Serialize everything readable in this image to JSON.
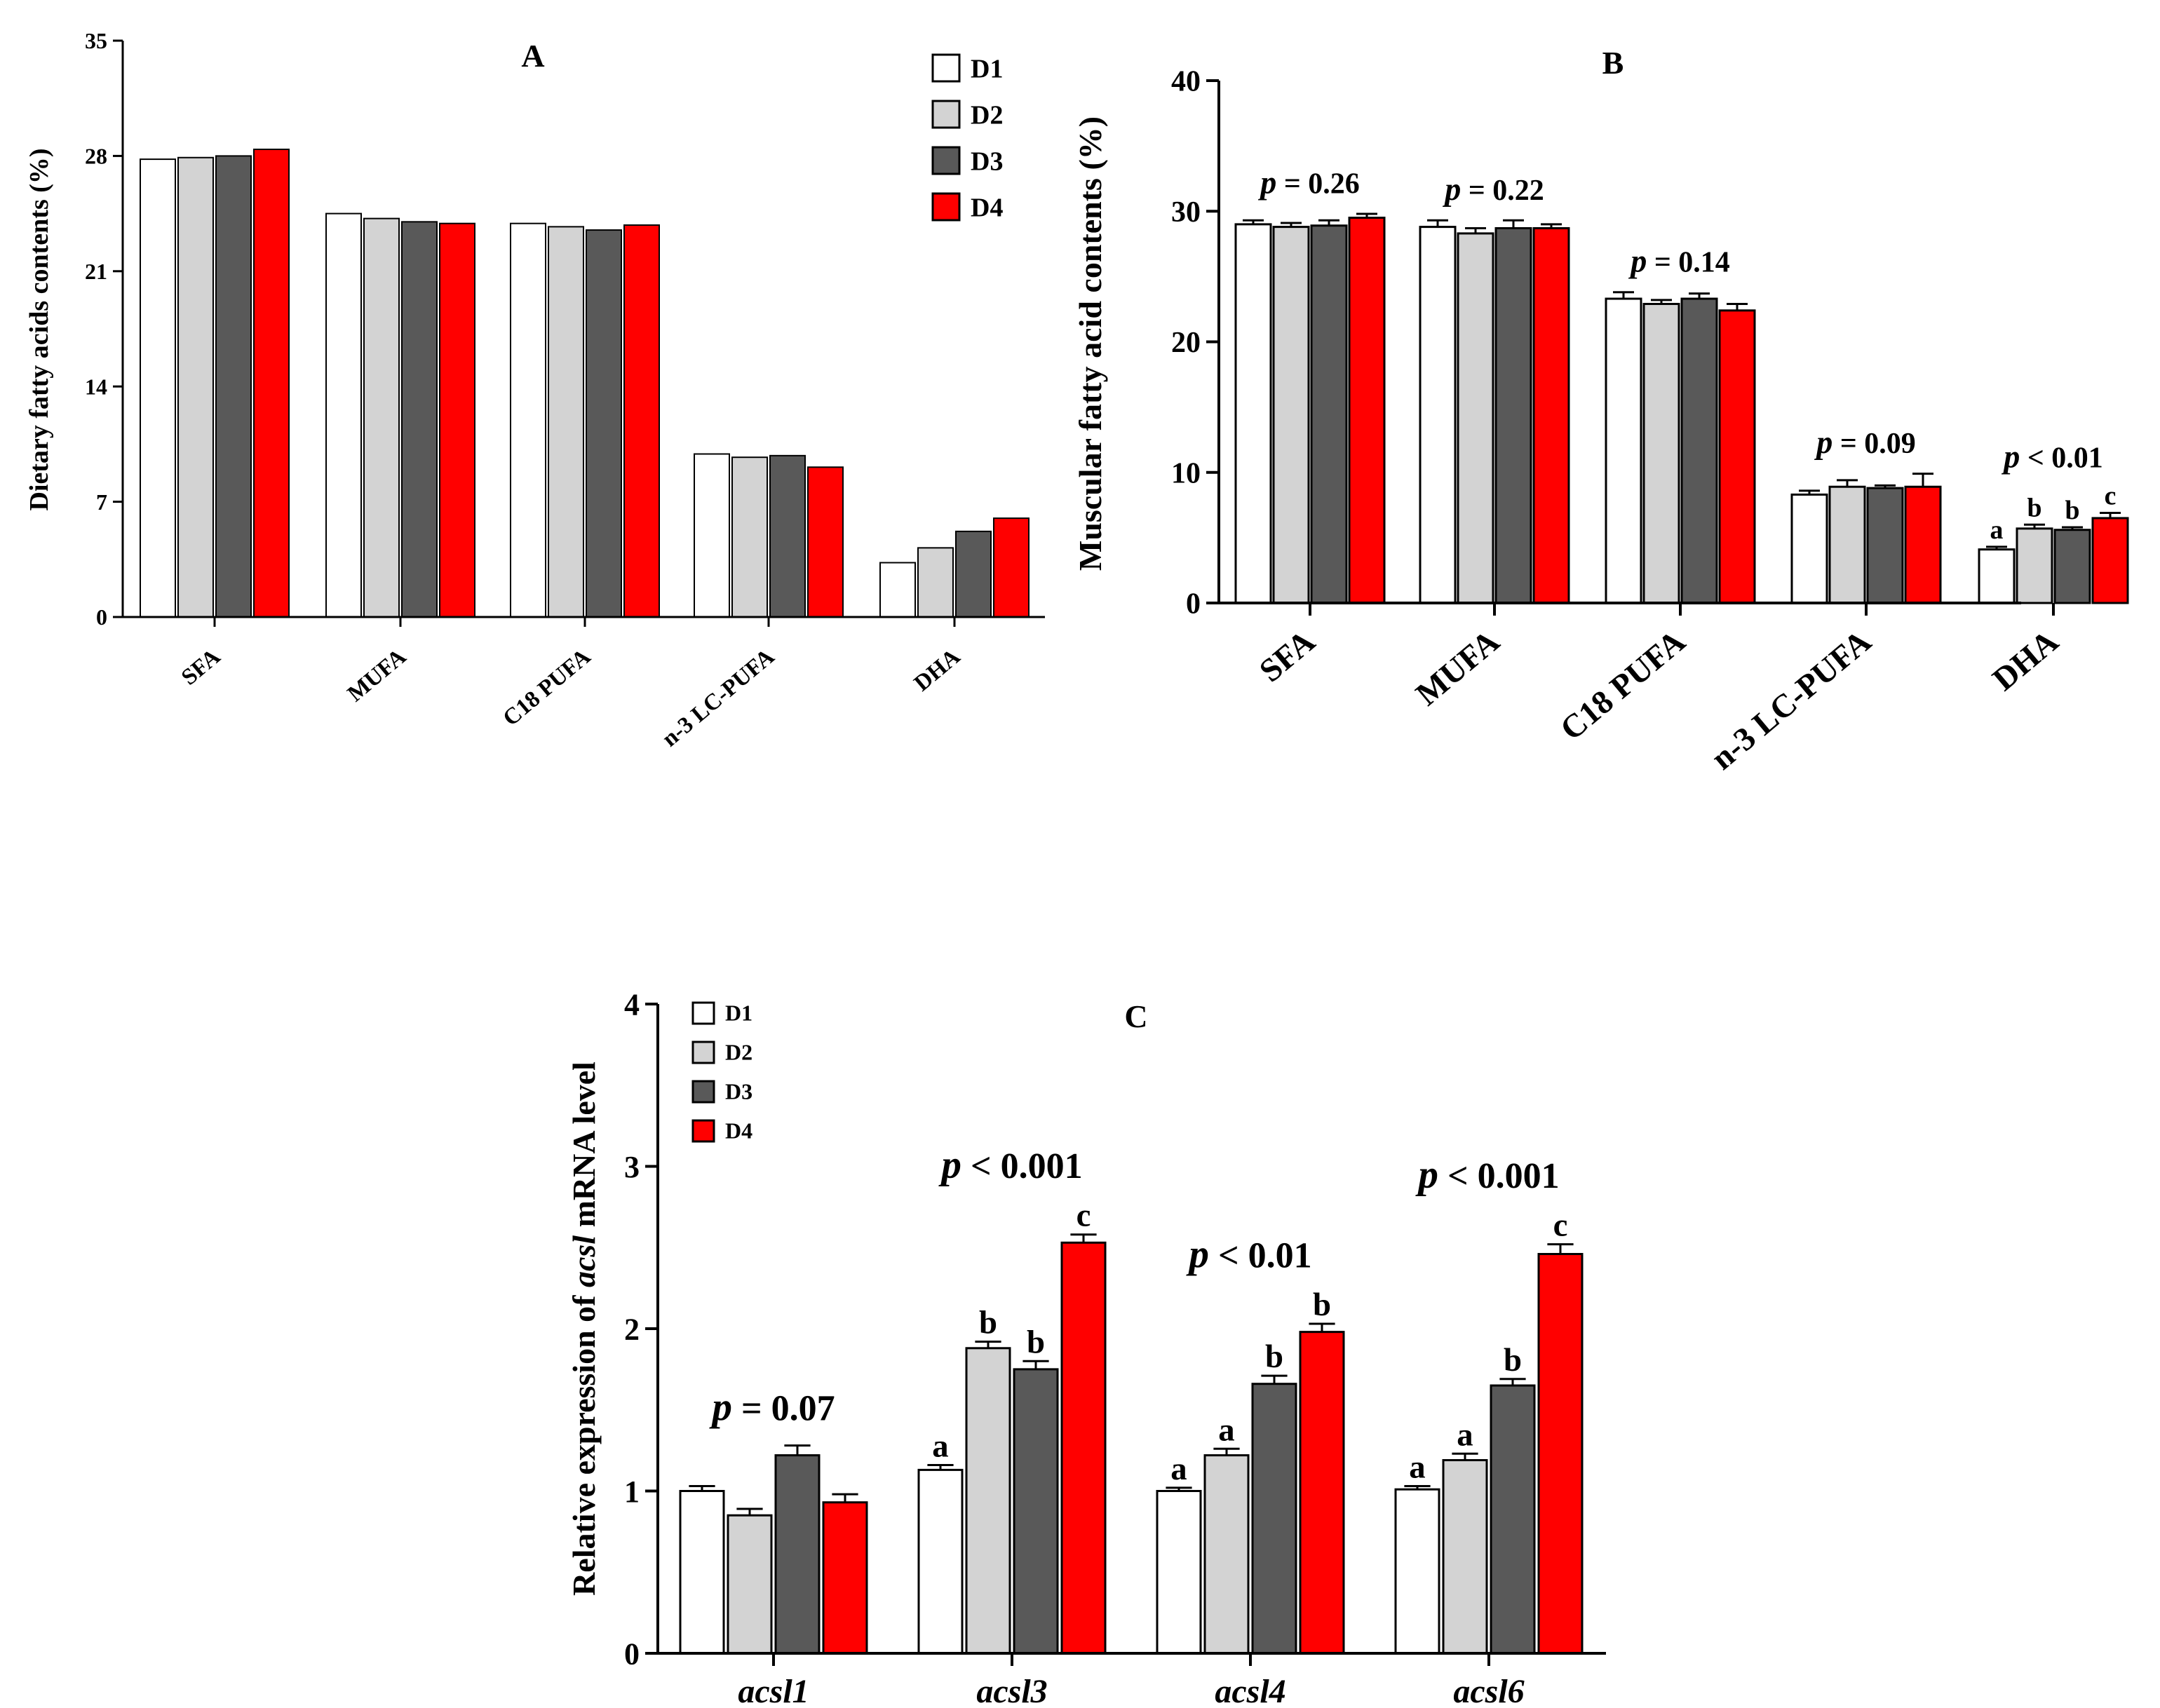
{
  "colors": {
    "D1": "#ffffff",
    "D2": "#d3d3d3",
    "D3": "#595959",
    "D4": "#ff0000",
    "stroke": "#000000"
  },
  "chart_data": [
    {
      "id": "A",
      "type": "bar",
      "title": "A",
      "ylabel": "Dietary fatty acids contents  (%)",
      "xlabel": "",
      "ylim": [
        0,
        35
      ],
      "yticks": [
        "0",
        "7",
        "14",
        "21",
        "28",
        "35"
      ],
      "categories": [
        "SFA",
        "MUFA",
        "C18 PUFA",
        "n-3 LC-PUFA",
        "DHA"
      ],
      "legend": [
        "D1",
        "D2",
        "D3",
        "D4"
      ],
      "legend_position": "top-right",
      "series": [
        {
          "name": "D1",
          "values": [
            27.8,
            24.5,
            23.9,
            9.9,
            3.3
          ]
        },
        {
          "name": "D2",
          "values": [
            27.9,
            24.2,
            23.7,
            9.7,
            4.2
          ]
        },
        {
          "name": "D3",
          "values": [
            28.0,
            24.0,
            23.5,
            9.8,
            5.2
          ]
        },
        {
          "name": "D4",
          "values": [
            28.4,
            23.9,
            23.8,
            9.1,
            6.0
          ]
        }
      ]
    },
    {
      "id": "B",
      "type": "bar",
      "title": "B",
      "ylabel": "Muscular fatty acid contents (%)",
      "xlabel": "",
      "ylim": [
        0,
        40
      ],
      "yticks": [
        "0",
        "10",
        "20",
        "30",
        "40"
      ],
      "categories": [
        "SFA",
        "MUFA",
        "C18 PUFA",
        "n-3 LC-PUFA",
        "DHA"
      ],
      "series": [
        {
          "name": "D1",
          "values": [
            29.0,
            28.8,
            23.3,
            8.3,
            4.1
          ],
          "errors": [
            0.3,
            0.5,
            0.5,
            0.3,
            0.2
          ]
        },
        {
          "name": "D2",
          "values": [
            28.8,
            28.3,
            22.9,
            8.9,
            5.7
          ],
          "errors": [
            0.3,
            0.4,
            0.3,
            0.5,
            0.3
          ]
        },
        {
          "name": "D3",
          "values": [
            28.9,
            28.7,
            23.3,
            8.8,
            5.6
          ],
          "errors": [
            0.4,
            0.6,
            0.4,
            0.2,
            0.2
          ]
        },
        {
          "name": "D4",
          "values": [
            29.5,
            28.7,
            22.4,
            8.9,
            6.5
          ],
          "errors": [
            0.3,
            0.3,
            0.5,
            1.0,
            0.4
          ]
        }
      ],
      "p_labels": [
        {
          "category": "SFA",
          "p": "p",
          "rest": " = 0.26"
        },
        {
          "category": "MUFA",
          "p": "p",
          "rest": " = 0.22"
        },
        {
          "category": "C18 PUFA",
          "p": "p",
          "rest": " = 0.14"
        },
        {
          "category": "n-3 LC-PUFA",
          "p": "p",
          "rest": " = 0.09"
        },
        {
          "category": "DHA",
          "p": "p",
          "rest": " < 0.01"
        }
      ],
      "letters": [
        {
          "category": "DHA",
          "series": "D1",
          "letter": "a"
        },
        {
          "category": "DHA",
          "series": "D2",
          "letter": "b"
        },
        {
          "category": "DHA",
          "series": "D3",
          "letter": "b"
        },
        {
          "category": "DHA",
          "series": "D4",
          "letter": "c"
        }
      ]
    },
    {
      "id": "C",
      "type": "bar",
      "title": "C",
      "ylabel_parts": [
        "Relative expression of ",
        "acsl",
        "  mRNA level"
      ],
      "xlabel": "",
      "ylim": [
        0,
        4
      ],
      "yticks": [
        "0",
        "1",
        "2",
        "3",
        "4"
      ],
      "categories": [
        "acsl1",
        "acsl3",
        "acsl4",
        "acsl6"
      ],
      "legend": [
        "D1",
        "D2",
        "D3",
        "D4"
      ],
      "legend_position": "top-left",
      "series": [
        {
          "name": "D1",
          "values": [
            1.0,
            1.13,
            1.0,
            1.01
          ],
          "errors": [
            0.03,
            0.03,
            0.02,
            0.02
          ]
        },
        {
          "name": "D2",
          "values": [
            0.85,
            1.88,
            1.22,
            1.19
          ],
          "errors": [
            0.04,
            0.04,
            0.04,
            0.04
          ]
        },
        {
          "name": "D3",
          "values": [
            1.22,
            1.75,
            1.66,
            1.65
          ],
          "errors": [
            0.06,
            0.05,
            0.05,
            0.04
          ]
        },
        {
          "name": "D4",
          "values": [
            0.93,
            2.53,
            1.98,
            2.46
          ],
          "errors": [
            0.05,
            0.05,
            0.05,
            0.06
          ]
        }
      ],
      "p_labels": [
        {
          "category": "acsl1",
          "p": "p",
          "rest": " = 0.07"
        },
        {
          "category": "acsl3",
          "p": "p",
          "rest": " < 0.001"
        },
        {
          "category": "acsl4",
          "p": "p",
          "rest": " < 0.01"
        },
        {
          "category": "acsl6",
          "p": "p",
          "rest": " < 0.001"
        }
      ],
      "letters": [
        {
          "category": "acsl3",
          "series": "D1",
          "letter": "a"
        },
        {
          "category": "acsl3",
          "series": "D2",
          "letter": "b"
        },
        {
          "category": "acsl3",
          "series": "D3",
          "letter": "b"
        },
        {
          "category": "acsl3",
          "series": "D4",
          "letter": "c"
        },
        {
          "category": "acsl4",
          "series": "D1",
          "letter": "a"
        },
        {
          "category": "acsl4",
          "series": "D2",
          "letter": "a"
        },
        {
          "category": "acsl4",
          "series": "D3",
          "letter": "b"
        },
        {
          "category": "acsl4",
          "series": "D4",
          "letter": "b"
        },
        {
          "category": "acsl6",
          "series": "D1",
          "letter": "a"
        },
        {
          "category": "acsl6",
          "series": "D2",
          "letter": "a"
        },
        {
          "category": "acsl6",
          "series": "D3",
          "letter": "b"
        },
        {
          "category": "acsl6",
          "series": "D4",
          "letter": "c"
        }
      ]
    }
  ]
}
